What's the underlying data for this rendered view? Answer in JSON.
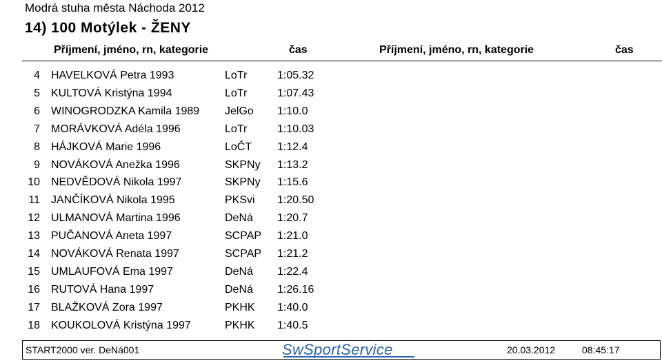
{
  "header": {
    "title": "Modrá stuha města Náchoda 2012",
    "event": "14)  100  Motýlek  -  ŽENY"
  },
  "columns": {
    "name_left": "Příjmení, jméno, rn, kategorie",
    "time_left": "čas",
    "name_right": "Příjmení, jméno, rn, kategorie",
    "time_right": "čas"
  },
  "results": [
    {
      "rank": "4",
      "name": "HAVELKOVÁ  Petra  1993",
      "club": "LoTr",
      "time": "1:05.32"
    },
    {
      "rank": "5",
      "name": "KULTOVÁ  Kristýna  1994",
      "club": "LoTr",
      "time": "1:07.43"
    },
    {
      "rank": "6",
      "name": "WINOGRODZKA  Kamila  1989",
      "club": "JelGo",
      "time": "1:10.0"
    },
    {
      "rank": "7",
      "name": "MORÁVKOVÁ  Adéla  1996",
      "club": "LoTr",
      "time": "1:10.03"
    },
    {
      "rank": "8",
      "name": "HÁJKOVÁ  Marie  1996",
      "club": "LoČT",
      "time": "1:12.4"
    },
    {
      "rank": "9",
      "name": "NOVÁKOVÁ  Anežka  1996",
      "club": "SKPNy",
      "time": "1:13.2"
    },
    {
      "rank": "10",
      "name": "NEDVĚDOVÁ  Nikola  1997",
      "club": "SKPNy",
      "time": "1:15.6"
    },
    {
      "rank": "11",
      "name": "JANČÍKOVÁ  Nikola  1995",
      "club": "PKSvi",
      "time": "1:20.50"
    },
    {
      "rank": "12",
      "name": "ULMANOVÁ  Martina  1996",
      "club": "DeNá",
      "time": "1:20.7"
    },
    {
      "rank": "13",
      "name": "PUČANOVÁ  Aneta  1997",
      "club": "SCPAP",
      "time": "1:21.0"
    },
    {
      "rank": "14",
      "name": "NOVÁKOVÁ  Renata  1997",
      "club": "SCPAP",
      "time": "1:21.2"
    },
    {
      "rank": "15",
      "name": "UMLAUFOVÁ  Ema  1997",
      "club": "DeNá",
      "time": "1:22.4"
    },
    {
      "rank": "16",
      "name": "RUTOVÁ  Hana  1997",
      "club": "DeNá",
      "time": "1:26.16"
    },
    {
      "rank": "17",
      "name": "BLAŽKOVÁ  Zora  1997",
      "club": "PKHK",
      "time": "1:40.0"
    },
    {
      "rank": "18",
      "name": "KOUKOLOVÁ  Kristýna  1997",
      "club": "PKHK",
      "time": "1:40.5"
    }
  ],
  "footer": {
    "version": "START2000 ver.  DeNá001",
    "logo_text": "SwSportService",
    "date": "20.03.2012",
    "time": "08:45:17"
  },
  "colors": {
    "logo_blue": "#2b62b0",
    "text": "#000000"
  }
}
